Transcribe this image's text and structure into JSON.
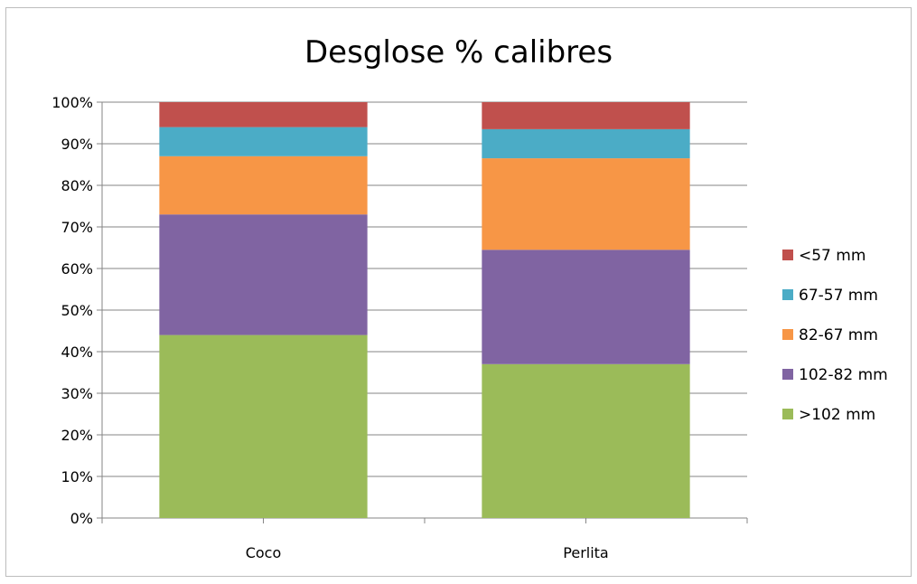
{
  "chart_data": {
    "type": "bar",
    "stacked": true,
    "title": "Desglose % calibres",
    "xlabel": "",
    "ylabel": "",
    "ylim": [
      0,
      100
    ],
    "y_ticks": [
      "0%",
      "10%",
      "20%",
      "30%",
      "40%",
      "50%",
      "60%",
      "70%",
      "80%",
      "90%",
      "100%"
    ],
    "categories": [
      "Coco",
      "Perlita"
    ],
    "series": [
      {
        "name": ">102 mm",
        "color": "#9bbb59",
        "values": [
          44,
          37
        ]
      },
      {
        "name": "102-82 mm",
        "color": "#8064a2",
        "values": [
          29,
          27.5
        ]
      },
      {
        "name": "82-67 mm",
        "color": "#f79646",
        "values": [
          14,
          22
        ]
      },
      {
        "name": "67-57 mm",
        "color": "#4bacc6",
        "values": [
          7,
          7
        ]
      },
      {
        "name": "<57 mm",
        "color": "#c0504d",
        "values": [
          6,
          6.5
        ]
      }
    ],
    "grid": true,
    "legend_position": "right"
  }
}
